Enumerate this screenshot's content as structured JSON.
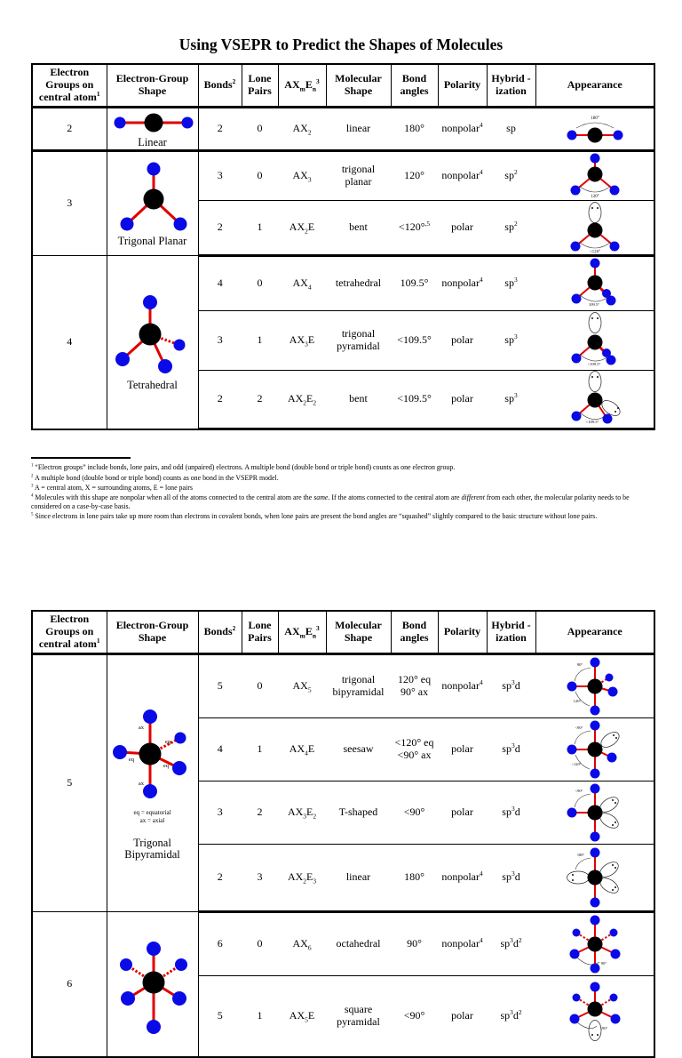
{
  "page": {
    "title": "Using VSEPR to Predict the Shapes of Molecules"
  },
  "headers": [
    "Electron Groups on central atom^1^",
    "Electron-Group Shape",
    "Bonds^2^",
    "Lone Pairs",
    "AX~m~E~n~^3^",
    "Molecular Shape",
    "Bond angles",
    "Polarity",
    "Hybrid -ization",
    "Appearance"
  ],
  "table1": {
    "groups": [
      {
        "number": "2",
        "label": "Linear",
        "rows": [
          [
            "2",
            "0",
            "AX~2~",
            "linear",
            "180°",
            "nonpolar^4^",
            "sp"
          ]
        ]
      },
      {
        "number": "3",
        "label": "Trigonal Planar",
        "rows": [
          [
            "3",
            "0",
            "AX~3~",
            "trigonal planar",
            "120°",
            "nonpolar^4^",
            "sp^2^"
          ],
          [
            "2",
            "1",
            "AX~2~E",
            "bent",
            "<120°^,5^",
            "polar",
            "sp^2^"
          ]
        ]
      },
      {
        "number": "4",
        "label": "Tetrahedral",
        "rows": [
          [
            "4",
            "0",
            "AX~4~",
            "tetrahedral",
            "109.5°",
            "nonpolar^4^",
            "sp^3^"
          ],
          [
            "3",
            "1",
            "AX~3~E",
            "trigonal pyramidal",
            "<109.5°",
            "polar",
            "sp^3^"
          ],
          [
            "2",
            "2",
            "AX~2~E~2~",
            "bent",
            "<109.5°",
            "polar",
            "sp^3^"
          ]
        ]
      }
    ]
  },
  "table2": {
    "groups": [
      {
        "number": "5",
        "label": "Trigonal Bipyramidal",
        "note1": "eq = equatorial",
        "note2": "ax = axial",
        "rows": [
          [
            "5",
            "0",
            "AX~5~",
            "trigonal bipyramidal",
            "120° eq 90° ax",
            "nonpolar^4^",
            "sp^3^d"
          ],
          [
            "4",
            "1",
            "AX~4~E",
            "seesaw",
            "<120° eq <90° ax",
            "polar",
            "sp^3^d"
          ],
          [
            "3",
            "2",
            "AX~3~E~2~",
            "T-shaped",
            "<90°",
            "polar",
            "sp^3^d"
          ],
          [
            "2",
            "3",
            "AX~2~E~3~",
            "linear",
            "180°",
            "nonpolar^4^",
            "sp^3^d"
          ]
        ]
      },
      {
        "number": "6",
        "label": "",
        "rows": [
          [
            "6",
            "0",
            "AX~6~",
            "octahedral",
            "90°",
            "nonpolar^4^",
            "sp^3^d^2^"
          ],
          [
            "5",
            "1",
            "AX~5~E",
            "square pyramidal",
            "<90°",
            "polar",
            "sp^3^d^2^"
          ]
        ]
      }
    ]
  },
  "footnotes": [
    "^1^ “Electron groups” include bonds, lone pairs, and odd (unpaired) electrons.  A multiple bond (double bond or triple bond) counts as one electron group.",
    "^2^ A multiple bond (double bond or triple bond) counts as one bond in the VSEPR model.",
    "^3^ A = central atom, X = surrounding atoms, E = lone pairs",
    "^4^ Molecules with this shape are nonpolar when all of the atoms connected to the central atom are the *same*.  If the atoms connected to the central atom are *different* from each other, the molecular polarity needs to be considered on a case-by-case basis.",
    "^5^ Since electrons in lone pairs take up more room than electrons in covalent bonds, when lone pairs are present the bond angles are “squashed” slightly compared to the basic structure without lone pairs."
  ],
  "diagram_labels": {
    "ax": "ax",
    "eq": "eq",
    "a180": "180°",
    "a120": "120°",
    "lt120": "<120°",
    "a109": "109.5°",
    "lt109": "<109.5°",
    "a90": "90°",
    "lt90": "<90°"
  },
  "colors": {
    "atom_blue": "#0a0ae6",
    "bond_red": "#e00000",
    "atom_black": "#000000"
  }
}
